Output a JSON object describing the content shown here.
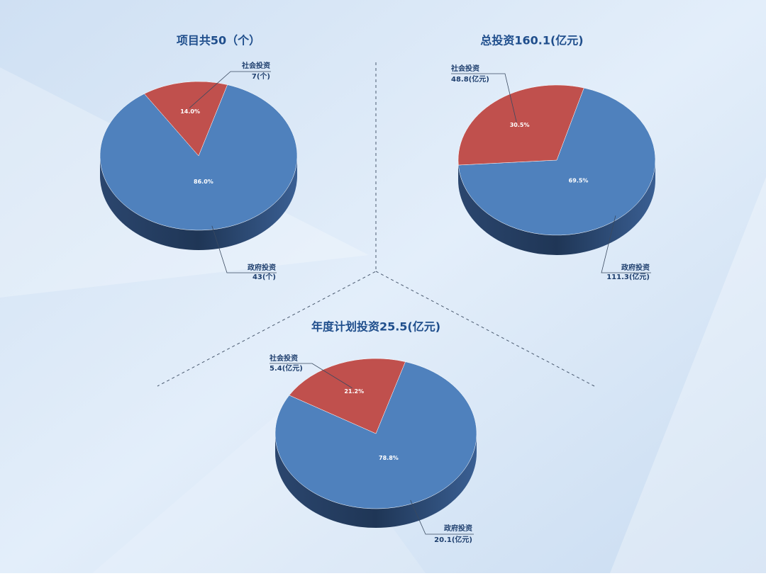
{
  "chart_data": [
    {
      "type": "pie3d",
      "title": "项目共50（个）",
      "categories": [
        "政府投资",
        "社会投资"
      ],
      "values": [
        86,
        14
      ],
      "value_labels": [
        "86.0%",
        "14.0%"
      ],
      "amount_labels": [
        "43(个)",
        "7(个)"
      ],
      "colors": [
        "#4f81bd",
        "#c0504d"
      ]
    },
    {
      "type": "pie3d",
      "title": "总投资160.1(亿元)",
      "categories": [
        "政府投资",
        "社会投资"
      ],
      "values": [
        69.5,
        30.5
      ],
      "value_labels": [
        "69.5%",
        "30.5%"
      ],
      "amount_labels": [
        "111.3(亿元)",
        "48.8(亿元)"
      ],
      "colors": [
        "#4f81bd",
        "#c0504d"
      ]
    },
    {
      "type": "pie3d",
      "title": "年度计划投资25.5(亿元)",
      "categories": [
        "政府投资",
        "社会投资"
      ],
      "values": [
        78.8,
        21.2
      ],
      "value_labels": [
        "78.8%",
        "21.2%"
      ],
      "amount_labels": [
        "20.1(亿元)",
        "5.4(亿元)"
      ],
      "colors": [
        "#4f81bd",
        "#c0504d"
      ]
    }
  ]
}
